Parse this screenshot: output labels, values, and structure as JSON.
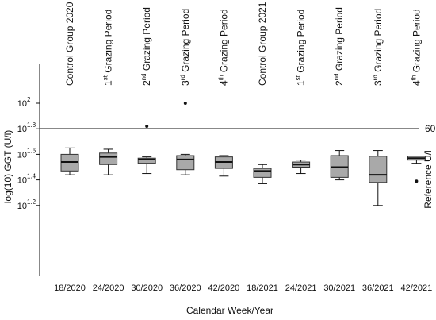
{
  "chart_data": {
    "type": "boxplot",
    "xlabel": "Calendar Week/Year",
    "ylabel": "log(10) GGT (U/l)",
    "y_scale": "log10",
    "ylim_log10": [
      1.15,
      2.05
    ],
    "y_ticks": [
      {
        "exp": "2",
        "value_log10": 2.0
      },
      {
        "exp": "1.8",
        "value_log10": 1.8
      },
      {
        "exp": "1.6",
        "value_log10": 1.6
      },
      {
        "exp": "1.4",
        "value_log10": 1.4
      },
      {
        "exp": "1.2",
        "value_log10": 1.2
      }
    ],
    "y_tick_base": "10",
    "reference_line": {
      "value": "60",
      "value_log10": 1.778,
      "label": "Reference U/l"
    },
    "groups": [
      {
        "label": "Control Group 2020",
        "prefix": "",
        "sup": "",
        "suffix": "Control Group 2020"
      },
      {
        "label": "1st Grazing Period",
        "prefix": "1",
        "sup": "st",
        "suffix": " Grazing Period"
      },
      {
        "label": "2nd Grazing Period",
        "prefix": "2",
        "sup": "nd",
        "suffix": " Grazing Period"
      },
      {
        "label": "3rd Grazing Period",
        "prefix": "3",
        "sup": "rd",
        "suffix": " Grazing Period"
      },
      {
        "label": "4th Grazing Period",
        "prefix": "4",
        "sup": "th",
        "suffix": " Grazing Period"
      },
      {
        "label": "Control Group 2021",
        "prefix": "",
        "sup": "",
        "suffix": "Control Group 2021"
      },
      {
        "label": "1st Grazing Period",
        "prefix": "1",
        "sup": "st",
        "suffix": " Grazing Period"
      },
      {
        "label": "2nd Grazing Period",
        "prefix": "2",
        "sup": "nd",
        "suffix": " Grazing Period"
      },
      {
        "label": "3rd Grazing Period",
        "prefix": "3",
        "sup": "rd",
        "suffix": " Grazing Period"
      },
      {
        "label": "4th Grazing Period",
        "prefix": "4",
        "sup": "th",
        "suffix": " Grazing Period"
      }
    ],
    "categories": [
      "18/2020",
      "24/2020",
      "30/2020",
      "36/2020",
      "42/2020",
      "18/2021",
      "24/2021",
      "30/2021",
      "36/2021",
      "42/2021"
    ],
    "boxes_log10": [
      {
        "min": 1.44,
        "q1": 1.47,
        "median": 1.54,
        "q3": 1.6,
        "max": 1.65,
        "outliers": []
      },
      {
        "min": 1.44,
        "q1": 1.52,
        "median": 1.58,
        "q3": 1.61,
        "max": 1.64,
        "outliers": []
      },
      {
        "min": 1.45,
        "q1": 1.53,
        "median": 1.56,
        "q3": 1.57,
        "max": 1.58,
        "outliers": [
          1.82
        ]
      },
      {
        "min": 1.44,
        "q1": 1.48,
        "median": 1.56,
        "q3": 1.59,
        "max": 1.6,
        "outliers": [
          2.0
        ]
      },
      {
        "min": 1.43,
        "q1": 1.49,
        "median": 1.54,
        "q3": 1.58,
        "max": 1.59,
        "outliers": []
      },
      {
        "min": 1.37,
        "q1": 1.42,
        "median": 1.47,
        "q3": 1.49,
        "max": 1.52,
        "outliers": []
      },
      {
        "min": 1.45,
        "q1": 1.5,
        "median": 1.52,
        "q3": 1.54,
        "max": 1.555,
        "outliers": []
      },
      {
        "min": 1.4,
        "q1": 1.42,
        "median": 1.5,
        "q3": 1.59,
        "max": 1.63,
        "outliers": []
      },
      {
        "min": 1.2,
        "q1": 1.38,
        "median": 1.44,
        "q3": 1.585,
        "max": 1.63,
        "outliers": []
      },
      {
        "min": 1.53,
        "q1": 1.555,
        "median": 1.57,
        "q3": 1.585,
        "max": 1.585,
        "outliers": [
          1.39
        ]
      }
    ],
    "box_color": "#a9a9a9",
    "line_color": "#111111",
    "grid": false,
    "legend": "none"
  }
}
